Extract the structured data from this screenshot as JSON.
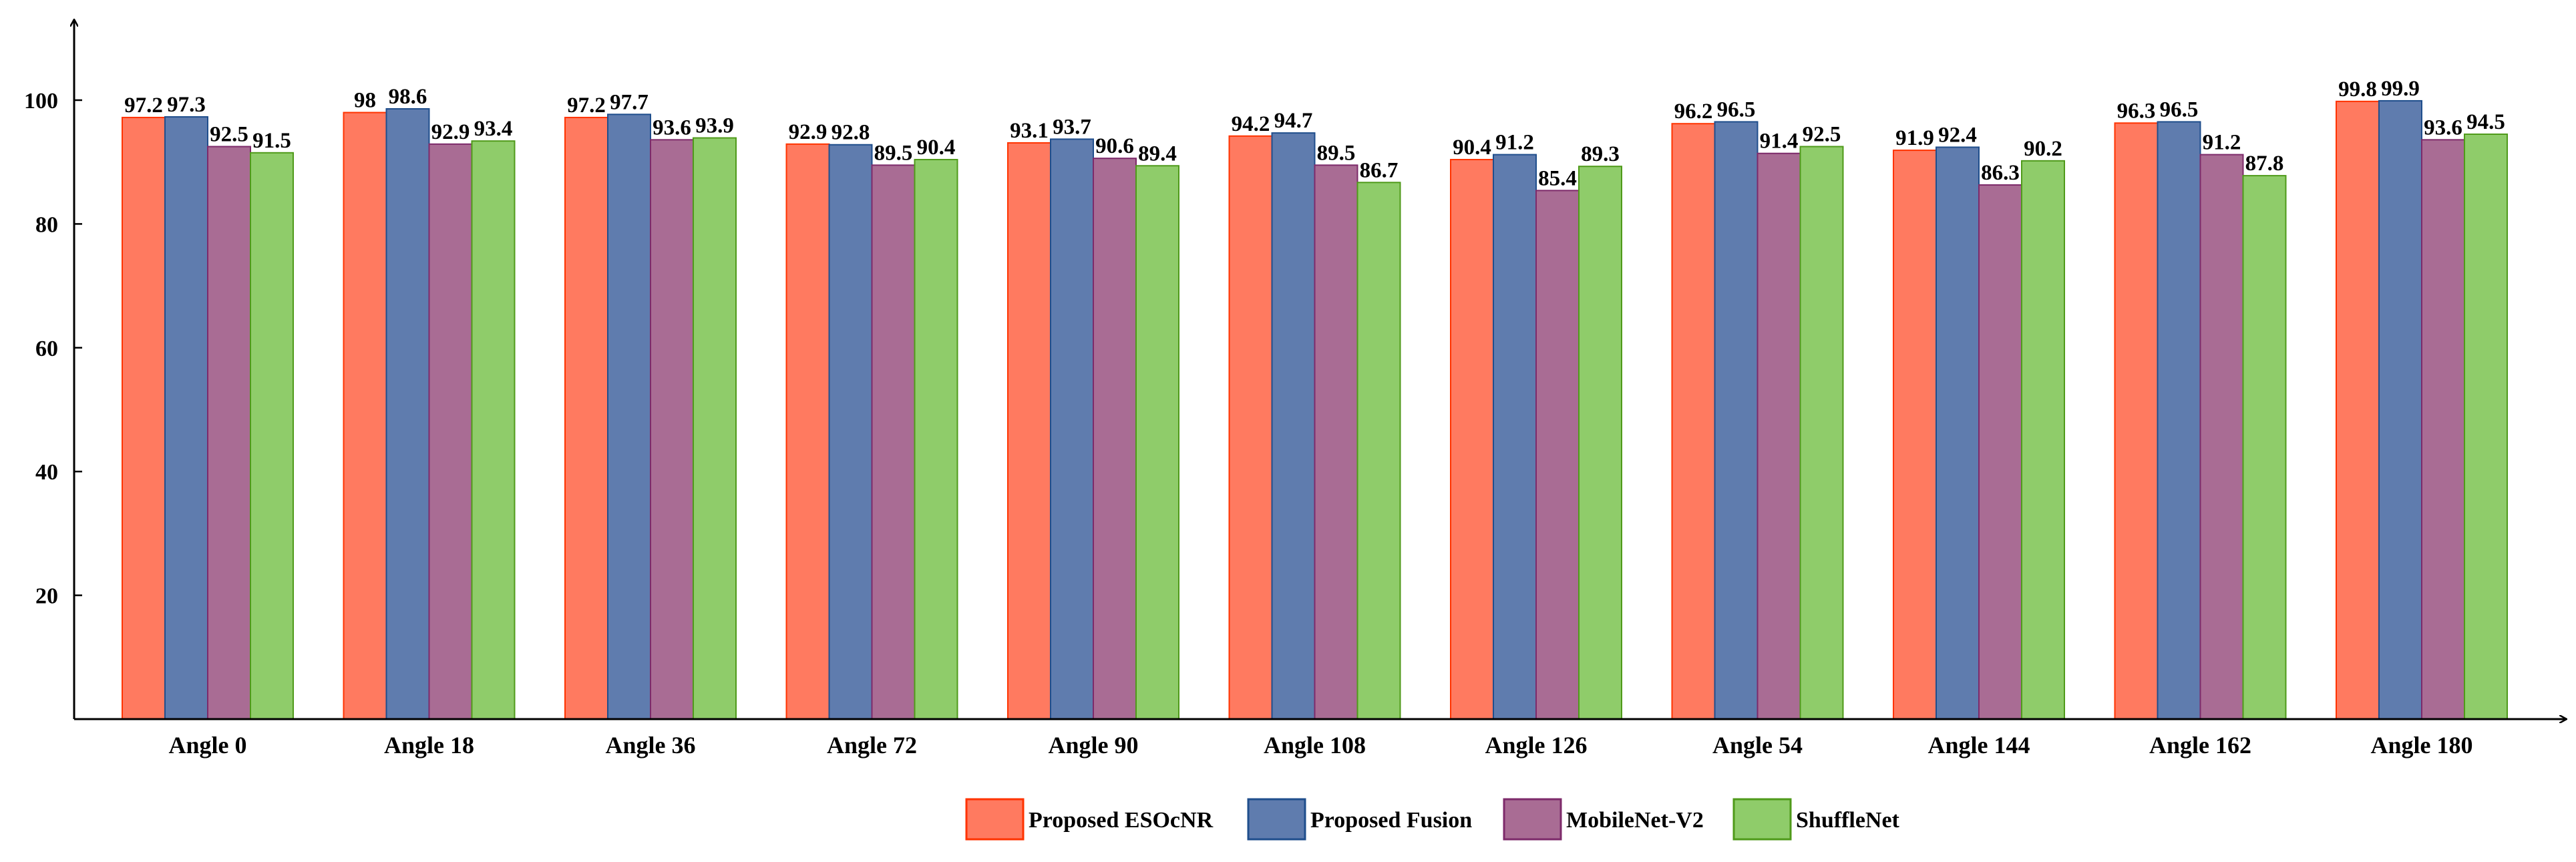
{
  "chart_data": {
    "type": "bar",
    "title": "",
    "xlabel": "",
    "ylabel": "",
    "ylim": [
      0,
      110
    ],
    "yticks": [
      20,
      40,
      60,
      80,
      100
    ],
    "grid": false,
    "legend_position": "bottom",
    "categories": [
      "Angle 0",
      "Angle 18",
      "Angle 36",
      "Angle 72",
      "Angle 90",
      "Angle 108",
      "Angle 126",
      "Angle 54",
      "Angle 144",
      "Angle 162",
      "Angle 180"
    ],
    "series": [
      {
        "name": "Proposed ESOcNR",
        "color": "#ff7a60",
        "border": "#ff3300",
        "values": [
          97.2,
          98,
          97.2,
          92.9,
          93.1,
          94.2,
          90.4,
          96.2,
          91.9,
          96.3,
          99.8
        ],
        "labels": [
          "97.2",
          "98",
          "97.2",
          "92.9",
          "93.1",
          "94.2",
          "90.4",
          "96.2",
          "91.9",
          "96.3",
          "99.8"
        ]
      },
      {
        "name": "Proposed Fusion",
        "color": "#5f7cae",
        "border": "#1f4e8c",
        "values": [
          97.3,
          98.6,
          97.7,
          92.8,
          93.7,
          94.7,
          91.2,
          96.5,
          92.4,
          96.5,
          99.9
        ],
        "labels": [
          "97.3",
          "98.6",
          "97.7",
          "92.8",
          "93.7",
          "94.7",
          "91.2",
          "96.5",
          "92.4",
          "96.5",
          "99.9"
        ]
      },
      {
        "name": "MobileNet-V2",
        "color": "#a96c94",
        "border": "#7d2a6a",
        "values": [
          92.5,
          92.9,
          93.6,
          89.5,
          90.6,
          89.5,
          85.4,
          91.4,
          86.3,
          91.2,
          93.6
        ],
        "labels": [
          "92.5",
          "92.9",
          "93.6",
          "89.5",
          "90.6",
          "89.5",
          "85.4",
          "91.4",
          "86.3",
          "91.2",
          "93.6"
        ]
      },
      {
        "name": "ShuffleNet",
        "color": "#8fcc6a",
        "border": "#4f9a1a",
        "values": [
          91.5,
          93.4,
          93.9,
          90.4,
          89.4,
          86.7,
          89.3,
          92.5,
          90.2,
          87.8,
          94.5
        ],
        "labels": [
          "91.5",
          "93.4",
          "93.9",
          "90.4",
          "89.4",
          "86.7",
          "89.3",
          "92.5",
          "90.2",
          "87.8",
          "94.5"
        ]
      }
    ]
  }
}
